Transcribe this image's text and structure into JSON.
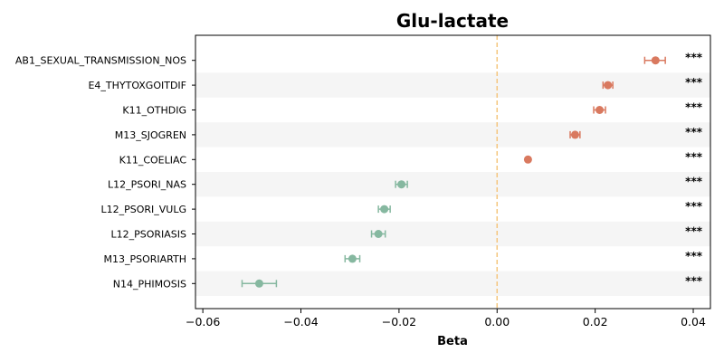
{
  "chart_data": {
    "type": "scatter",
    "title": "Glu-lactate",
    "xlabel": "Beta",
    "ylabel": "",
    "xlim": [
      -0.0615,
      0.0435
    ],
    "xticks": [
      -0.06,
      -0.04,
      -0.02,
      0.0,
      0.02,
      0.04
    ],
    "xtick_labels": [
      "−0.06",
      "−0.04",
      "−0.02",
      "0.00",
      "0.02",
      "0.04"
    ],
    "reference_line": 0.0,
    "colors": {
      "positive": "#d9795f",
      "negative": "#86b8a0",
      "reference": "#f5c67e",
      "stripe": "#f5f5f5"
    },
    "categories": [
      "AB1_SEXUAL_TRANSMISSION_NOS",
      "E4_THYTOXGOITDIF",
      "K11_OTHDIG",
      "M13_SJOGREN",
      "K11_COELIAC",
      "L12_PSORI_NAS",
      "L12_PSORI_VULG",
      "L12_PSORIASIS",
      "M13_PSORIARTH",
      "N14_PHIMOSIS"
    ],
    "values": [
      0.0323,
      0.0226,
      0.0209,
      0.0159,
      0.0063,
      -0.0195,
      -0.023,
      -0.0242,
      -0.0295,
      -0.0485
    ],
    "ci_low": [
      0.0301,
      0.0216,
      0.0197,
      0.0149,
      0.0061,
      -0.0207,
      -0.0242,
      -0.0256,
      -0.031,
      -0.052
    ],
    "ci_high": [
      0.0343,
      0.0236,
      0.0221,
      0.0169,
      0.0065,
      -0.0183,
      -0.0218,
      -0.0228,
      -0.028,
      -0.045
    ],
    "significance": [
      "***",
      "***",
      "***",
      "***",
      "***",
      "***",
      "***",
      "***",
      "***",
      "***"
    ]
  }
}
